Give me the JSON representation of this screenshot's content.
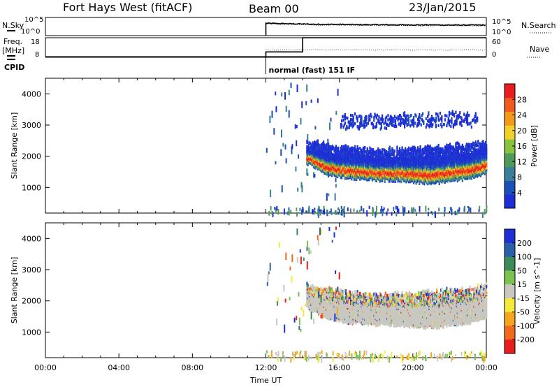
{
  "header": {
    "title": "Fort Hays West (fitACF)",
    "beam": "Beam 00",
    "date": "23/Jan/2015"
  },
  "params": {
    "nsky_label": "N.Sky",
    "nsearch_label": "N.Search",
    "noise_ticks": [
      "10^5",
      "10^0"
    ],
    "freq_label": [
      "Freq.",
      "[MHz]"
    ],
    "freq_ticks": [
      "18",
      "8"
    ],
    "nave_label": "Nave",
    "nave_ticks": [
      "60",
      "0"
    ],
    "cpid_label": "CPID",
    "cpid_text": "normal (fast) 151 IF"
  },
  "colors": {
    "power": [
      "#1f2fd6",
      "#1a50b8",
      "#3a7f9a",
      "#4f9a5a",
      "#8ac33f",
      "#f2d22a",
      "#f39a1c",
      "#ee5a1f",
      "#e81e1e"
    ],
    "velocity": [
      "#1f2fd6",
      "#2a5fa8",
      "#3a8a5a",
      "#7ac34f",
      "#c8c8c0",
      "#f4ea3a",
      "#f5a51f",
      "#ef6a1d",
      "#e81e1e"
    ],
    "ground_scatter": "#c8c8c0"
  },
  "chart_data": [
    {
      "type": "line",
      "panel": "noise",
      "title": "Fort Hays West (fitACF)",
      "x": [
        "12:00",
        "13:00",
        "14:00",
        "15:00",
        "16:00",
        "17:00",
        "18:00",
        "19:00",
        "20:00",
        "21:00",
        "22:00",
        "23:00",
        "24:00"
      ],
      "series": [
        {
          "name": "N.Sky",
          "values": [
            3.4,
            3.3,
            3.2,
            3.1,
            3.1,
            3.0,
            3.0,
            2.95,
            2.95,
            2.95,
            2.9,
            2.9,
            2.9
          ]
        }
      ],
      "y_scale": "log",
      "ylim": [
        0,
        5
      ]
    },
    {
      "type": "line",
      "panel": "frequency",
      "x": [
        "12:00",
        "13:00",
        "13:45",
        "14:00",
        "15:00",
        "16:00",
        "18:00",
        "20:00",
        "22:00",
        "24:00"
      ],
      "series": [
        {
          "name": "Freq.",
          "values": [
            10.5,
            10.5,
            10.5,
            18.0,
            18.0,
            18.0,
            18.0,
            18.0,
            18.0,
            18.0
          ]
        },
        {
          "name": "Nave",
          "values": [
            10,
            10,
            10,
            10,
            10,
            10,
            10,
            10,
            10,
            10
          ]
        }
      ],
      "ylim": [
        8,
        18
      ]
    },
    {
      "type": "heatmap",
      "panel": "power",
      "xlabel": "",
      "ylabel": "Slant Range [km]",
      "colorbar_label": "Power [dB]",
      "colorbar_ticks": [
        "4",
        "8",
        "12",
        "16",
        "20",
        "24",
        "28"
      ],
      "x_ticks": [
        "00:00",
        "04:00",
        "08:00",
        "12:00",
        "16:00",
        "20:00",
        "00:00"
      ],
      "xlim_hours": [
        0,
        24
      ],
      "ylim": [
        180,
        4500
      ],
      "y_ticks": [
        1000,
        2000,
        3000,
        4000
      ],
      "bands": [
        {
          "name": "main scatter",
          "start_hr": 14.2,
          "end_hr": 24,
          "lower_km": [
            1800,
            1500,
            1350,
            1300,
            1250,
            1250,
            1200,
            1150,
            1250,
            1300,
            1500
          ],
          "upper_km": [
            2500,
            2400,
            2300,
            2250,
            2200,
            2250,
            2250,
            2300,
            2350,
            2400,
            2500
          ],
          "core_power_db": 28
        },
        {
          "name": "upper scatter",
          "start_hr": 16.0,
          "end_hr": 23.5,
          "lower_km": [
            2900,
            3000
          ],
          "upper_km": [
            3300,
            3400
          ],
          "core_power_db": 4
        }
      ]
    },
    {
      "type": "heatmap",
      "panel": "velocity",
      "xlabel": "Time UT",
      "ylabel": "Slant Range [km]",
      "colorbar_label": "Velocity [m s^-1]",
      "colorbar_ticks": [
        "200",
        "100",
        "50",
        "15",
        "-15",
        "-50",
        "-100",
        "-200"
      ],
      "x_ticks": [
        "00:00",
        "04:00",
        "08:00",
        "12:00",
        "16:00",
        "20:00",
        "00:00"
      ],
      "xlim_hours": [
        0,
        24
      ],
      "ylim": [
        180,
        4500
      ],
      "y_ticks": [
        1000,
        2000,
        3000,
        4000
      ],
      "bands": [
        {
          "name": "ground scatter",
          "start_hr": 14.2,
          "end_hr": 24,
          "lower_km": [
            1800,
            1500,
            1350,
            1300,
            1250,
            1250,
            1200,
            1150,
            1250,
            1300,
            1500
          ],
          "upper_km": [
            2500,
            2400,
            2300,
            2250,
            2200,
            2250,
            2250,
            2300,
            2350,
            2400,
            2500
          ],
          "velocity_ms": 0
        }
      ]
    }
  ]
}
